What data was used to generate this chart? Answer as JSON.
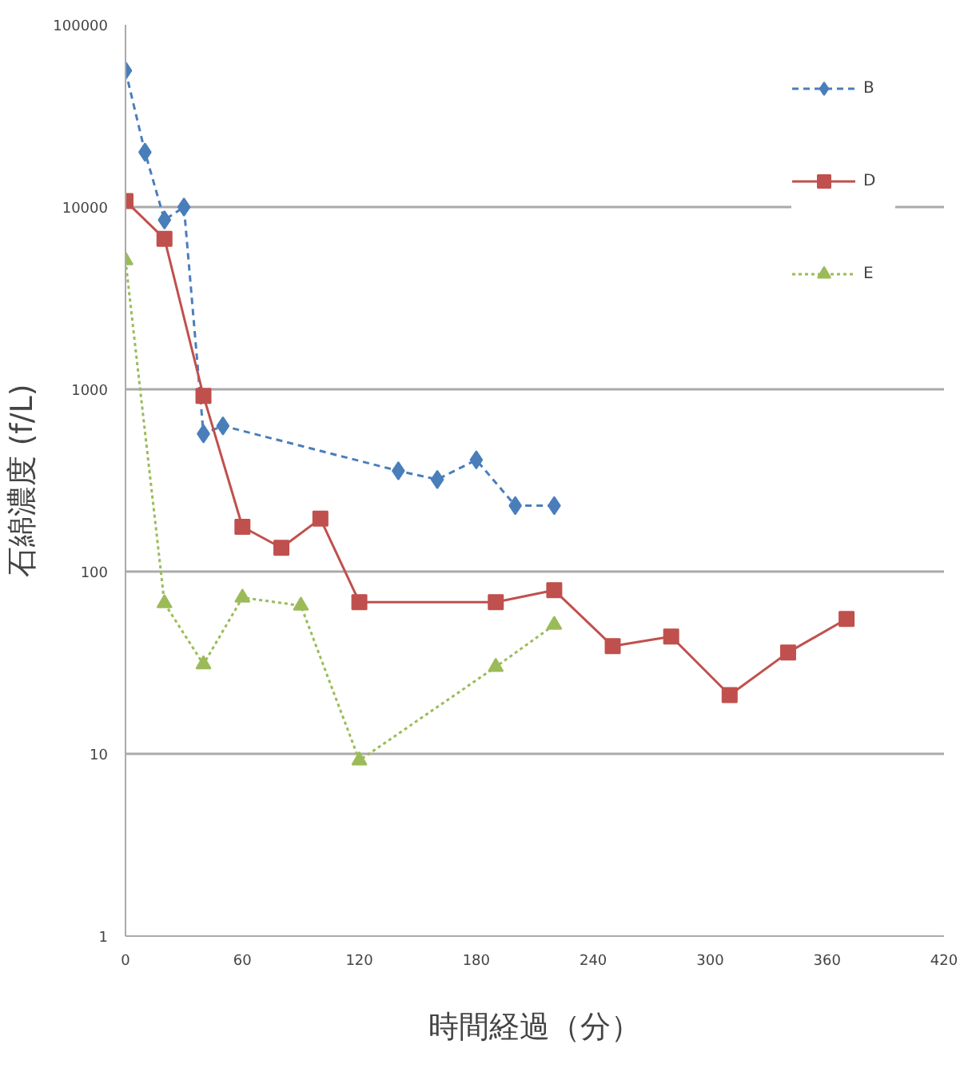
{
  "chart_data": {
    "type": "line",
    "xlabel": "時間経過（分）",
    "ylabel": "石綿濃度 (f/L)",
    "xlim": [
      0,
      420
    ],
    "xticks": [
      0,
      60,
      120,
      180,
      240,
      300,
      360,
      420
    ],
    "ylim": [
      1,
      100000
    ],
    "yticks": [
      1,
      10,
      100,
      1000,
      10000,
      100000
    ],
    "log": "y",
    "grid": "y",
    "legend": "top right",
    "series": [
      {
        "name": "B",
        "color": "#4a7ebb",
        "marker": "diamond",
        "line_style": "dashed",
        "x": [
          0,
          10,
          20,
          30,
          40,
          50,
          140,
          160,
          180,
          200,
          220
        ],
        "values": [
          56000,
          20000,
          8500,
          10000,
          570,
          630,
          357,
          320,
          410,
          230,
          230
        ]
      },
      {
        "name": "D",
        "color": "#c0504d",
        "marker": "square",
        "line_style": "solid",
        "x": [
          0,
          20,
          40,
          60,
          80,
          100,
          120,
          190,
          220,
          250,
          280,
          310,
          340,
          370
        ],
        "values": [
          10800,
          6700,
          920,
          176,
          135,
          195,
          68,
          68,
          79,
          39,
          44,
          21,
          36,
          55
        ]
      },
      {
        "name": "E",
        "color": "#9bbb59",
        "marker": "triangle",
        "line_style": "dotted",
        "x": [
          0,
          20,
          40,
          60,
          90,
          120,
          190,
          220
        ],
        "values": [
          5100,
          67,
          31,
          72,
          65,
          9.2,
          30,
          51
        ]
      }
    ]
  }
}
